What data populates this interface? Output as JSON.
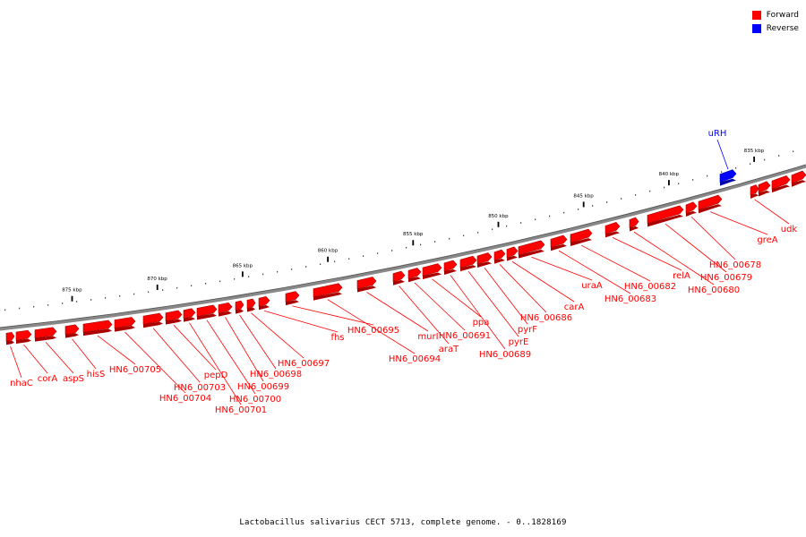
{
  "legend": {
    "forward_label": "Forward",
    "reverse_label": "Reverse",
    "forward_color": "#ff0000",
    "reverse_color": "#0000ff"
  },
  "caption": "Lactobacillus salivarius CECT 5713, complete genome. - 0..1828169",
  "axis": {
    "unit": "kbp",
    "ticks": [
      {
        "label": "835 kbp",
        "pos": 835
      },
      {
        "label": "840 kbp",
        "pos": 840
      },
      {
        "label": "845 kbp",
        "pos": 845
      },
      {
        "label": "850 kbp",
        "pos": 850
      },
      {
        "label": "855 kbp",
        "pos": 855
      },
      {
        "label": "860 kbp",
        "pos": 860
      },
      {
        "label": "865 kbp",
        "pos": 865
      },
      {
        "label": "870 kbp",
        "pos": 870
      },
      {
        "label": "875 kbp",
        "pos": 875
      }
    ]
  },
  "genes": [
    {
      "name": "nhaC",
      "strand": "forward"
    },
    {
      "name": "corA",
      "strand": "forward"
    },
    {
      "name": "aspS",
      "strand": "forward"
    },
    {
      "name": "hisS",
      "strand": "forward"
    },
    {
      "name": "HN6_00705",
      "strand": "forward"
    },
    {
      "name": "HN6_00704",
      "strand": "forward"
    },
    {
      "name": "HN6_00703",
      "strand": "forward"
    },
    {
      "name": "pepD",
      "strand": "forward"
    },
    {
      "name": "HN6_00701",
      "strand": "forward"
    },
    {
      "name": "HN6_00700",
      "strand": "forward"
    },
    {
      "name": "HN6_00699",
      "strand": "forward"
    },
    {
      "name": "HN6_00698",
      "strand": "forward"
    },
    {
      "name": "HN6_00697",
      "strand": "forward"
    },
    {
      "name": "fhs",
      "strand": "forward"
    },
    {
      "name": "HN6_00695",
      "strand": "forward"
    },
    {
      "name": "HN6_00694",
      "strand": "forward"
    },
    {
      "name": "murI",
      "strand": "forward"
    },
    {
      "name": "araT",
      "strand": "forward"
    },
    {
      "name": "HN6_00691",
      "strand": "forward"
    },
    {
      "name": "ppa",
      "strand": "forward"
    },
    {
      "name": "HN6_00689",
      "strand": "forward"
    },
    {
      "name": "pyrE",
      "strand": "forward"
    },
    {
      "name": "pyrF",
      "strand": "forward"
    },
    {
      "name": "HN6_00686",
      "strand": "forward"
    },
    {
      "name": "carA",
      "strand": "forward"
    },
    {
      "name": "uraA",
      "strand": "forward"
    },
    {
      "name": "HN6_00683",
      "strand": "forward"
    },
    {
      "name": "HN6_00682",
      "strand": "forward"
    },
    {
      "name": "relA",
      "strand": "forward"
    },
    {
      "name": "HN6_00680",
      "strand": "forward"
    },
    {
      "name": "HN6_00679",
      "strand": "forward"
    },
    {
      "name": "HN6_00678",
      "strand": "forward"
    },
    {
      "name": "greA",
      "strand": "forward"
    },
    {
      "name": "udk",
      "strand": "forward"
    },
    {
      "name": "uRH",
      "strand": "reverse"
    }
  ]
}
